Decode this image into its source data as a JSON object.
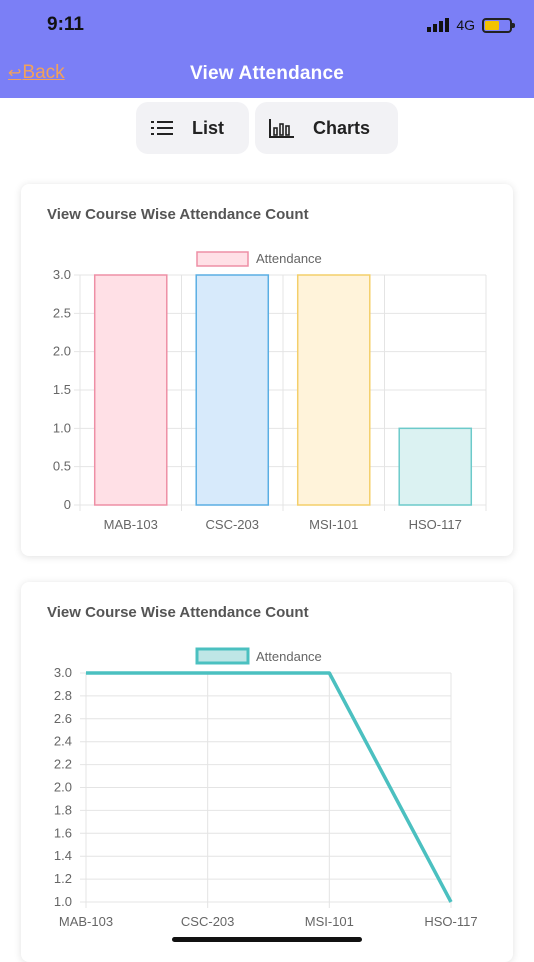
{
  "status_bar": {
    "time": "9:11",
    "network": "4G"
  },
  "header": {
    "back_label": "Back",
    "title": "View Attendance"
  },
  "segments": [
    {
      "label": "List",
      "icon": "list-icon"
    },
    {
      "label": "Charts",
      "icon": "bar-chart-icon"
    }
  ],
  "colors": {
    "primary": "#7b7ff6",
    "back_link": "#f2a15a",
    "line": "#4bc0c0"
  },
  "cards": [
    {
      "title": "View Course Wise Attendance Count"
    },
    {
      "title": "View Course Wise Attendance Count"
    }
  ],
  "chart_data": [
    {
      "type": "bar",
      "categories": [
        "MAB-103",
        "CSC-203",
        "MSI-101",
        "HSO-117"
      ],
      "series": [
        {
          "name": "Attendance",
          "values": [
            3,
            3,
            3,
            1
          ]
        }
      ],
      "bar_colors": [
        {
          "fill": "#ffe0e6",
          "stroke": "#ee8fa5"
        },
        {
          "fill": "#d7eafb",
          "stroke": "#5aaee3"
        },
        {
          "fill": "#fff3da",
          "stroke": "#f4cf6a"
        },
        {
          "fill": "#dbf2f2",
          "stroke": "#6ccaca"
        }
      ],
      "yticks": [
        "0",
        "0.5",
        "1.0",
        "1.5",
        "2.0",
        "2.5",
        "3.0"
      ],
      "ylim": [
        0,
        3
      ],
      "legend": "top",
      "grid": true
    },
    {
      "type": "line",
      "categories": [
        "MAB-103",
        "CSC-203",
        "MSI-101",
        "HSO-117"
      ],
      "series": [
        {
          "name": "Attendance",
          "values": [
            3,
            3,
            3,
            1
          ]
        }
      ],
      "yticks": [
        "1.0",
        "1.2",
        "1.4",
        "1.6",
        "1.8",
        "2.0",
        "2.2",
        "2.4",
        "2.6",
        "2.8",
        "3.0"
      ],
      "ylim": [
        1,
        3
      ],
      "legend": "top",
      "grid": true
    }
  ]
}
